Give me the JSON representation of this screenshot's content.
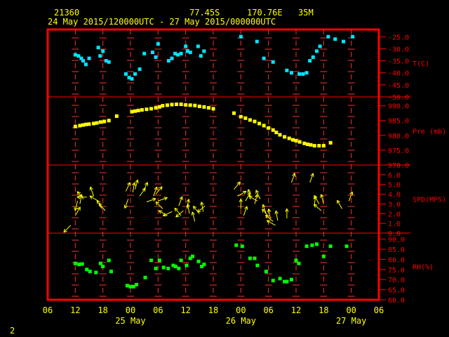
{
  "header": {
    "station": "21360",
    "lat": "77.45S",
    "lon": "170.76E",
    "elev": "35M",
    "period": "24 May 2015/120000UTC - 27 May 2015/000000UTC"
  },
  "footer": {
    "page": "2"
  },
  "colors": {
    "frame": "#ff0000",
    "tick": "#ff3030",
    "header": "#ffff00",
    "temp": "#00e5ff",
    "pres": "#ffff00",
    "wind": "#ffff00",
    "rh": "#00ff00",
    "axis_text": "#ffaa00"
  },
  "chart_data": {
    "type": "scatter",
    "x_axis": {
      "hour_labels": [
        "06",
        "12",
        "18",
        "00",
        "06",
        "12",
        "18",
        "00",
        "06",
        "12",
        "18",
        "00",
        "06"
      ],
      "hour_values": [
        6,
        12,
        18,
        24,
        30,
        36,
        42,
        48,
        54,
        60,
        66,
        72,
        78
      ],
      "day_labels": [
        "25 May",
        "26 May",
        "27 May"
      ],
      "day_positions": [
        24,
        48,
        72
      ],
      "unit": "hours from 24 May 2015 00UTC",
      "range": [
        6,
        78
      ]
    },
    "panels": [
      {
        "name": "temp",
        "label": "T(C)",
        "ylim": [
          -50,
          -22
        ],
        "ticks": [
          -50,
          -45,
          -40,
          -35,
          -30,
          -25
        ],
        "tick_labels": [
          "-50.0",
          "-45.0",
          "-40.0",
          "-35.0",
          "-30.0",
          "-25.0"
        ],
        "x": [
          12,
          12.7,
          13.3,
          13.7,
          14.3,
          15,
          17,
          17.4,
          18,
          18.7,
          19.3,
          23,
          23.7,
          24.3,
          25,
          26,
          27,
          28.8,
          29.5,
          30,
          32.3,
          33,
          33.7,
          34.3,
          35,
          36,
          36.4,
          37,
          38.7,
          39.3,
          40,
          48,
          51.5,
          53,
          55,
          58,
          59,
          60.7,
          61.5,
          62.3,
          63,
          63.7,
          64.5,
          65.2,
          67,
          68.5,
          70.3,
          72.3
        ],
        "y": [
          -32.5,
          -33,
          -34,
          -35,
          -36.5,
          -34,
          -29.5,
          -33,
          -31,
          -35,
          -35.5,
          -40.5,
          -42,
          -42.5,
          -40.5,
          -38.5,
          -32,
          -31.5,
          -33.5,
          -28,
          -35,
          -34,
          -32,
          -32.5,
          -32,
          -29,
          -31,
          -31.5,
          -29,
          -33,
          -31,
          -25,
          -27,
          -34,
          -35.5,
          -39,
          -40,
          -40.5,
          -40.5,
          -40,
          -35,
          -33.5,
          -31,
          -29,
          -25,
          -26,
          -27,
          -25
        ]
      },
      {
        "name": "pres",
        "label": "Pre (mb)",
        "ylim": [
          970,
          993
        ],
        "ticks": [
          970,
          975,
          980,
          985,
          990
        ],
        "tick_labels": [
          "970.0",
          "975.0",
          "980.0",
          "985.0",
          "990.0"
        ],
        "x": [
          12,
          13,
          13.7,
          14.3,
          15,
          16,
          16.7,
          17.5,
          18.3,
          19.3,
          21,
          24.3,
          25,
          25.7,
          26.5,
          27.5,
          28.5,
          29.5,
          30.3,
          31,
          32,
          33,
          34,
          35,
          36,
          37,
          38,
          39,
          40,
          41,
          42,
          46.5,
          48,
          49,
          50,
          51,
          52,
          53,
          54,
          55,
          55.7,
          56.5,
          57.5,
          58.5,
          59.3,
          60,
          60.8,
          61.8,
          62.5,
          63.2,
          64,
          65,
          66,
          67.5
        ],
        "y": [
          983,
          983.3,
          983.5,
          983.7,
          983.8,
          984,
          984.2,
          984.5,
          984.7,
          985,
          986.5,
          988,
          988.2,
          988.4,
          988.6,
          988.8,
          989,
          989.3,
          989.6,
          990,
          990.2,
          990.4,
          990.5,
          990.5,
          990.3,
          990.2,
          990.1,
          989.8,
          989.6,
          989.3,
          989,
          987.5,
          986.3,
          985.8,
          985.2,
          984.7,
          984,
          983.3,
          982.5,
          981.8,
          981,
          980.2,
          979.5,
          979,
          978.5,
          978.2,
          977.8,
          977.3,
          977,
          976.8,
          976.5,
          976.5,
          976.5,
          977.5
        ]
      },
      {
        "name": "wind",
        "label": "SPD(MPS)",
        "ylim": [
          0,
          7
        ],
        "ticks": [
          0,
          1,
          2,
          3,
          4,
          5,
          6
        ],
        "tick_labels": [
          "0.0",
          "1.0",
          "2.0",
          "3.0",
          "4.0",
          "5.0",
          "6.0"
        ],
        "x": [
          11,
          12,
          12.5,
          13,
          13.8,
          14.5,
          16,
          17,
          17.8,
          18.5,
          23,
          23.5,
          24.5,
          25,
          26,
          26.8,
          27.5,
          29,
          29.5,
          30,
          31,
          32,
          33,
          34.5,
          35,
          35.5,
          36.3,
          36.8,
          38,
          39,
          39.8,
          40.2,
          46.5,
          47.3,
          48,
          48.6,
          49,
          50,
          51,
          51.6,
          52.2,
          53.5,
          54,
          54.4,
          55,
          55.5,
          56,
          58,
          59,
          63,
          64,
          65,
          65.5,
          66,
          70,
          71.5
        ],
        "y": [
          0.8,
          1.8,
          3.3,
          3.0,
          3.5,
          3.7,
          3.8,
          3.3,
          2.5,
          2.3,
          4.3,
          3.5,
          4.2,
          4.5,
          3.8,
          4.3,
          3.2,
          3.8,
          4.0,
          3.3,
          2.5,
          1.8,
          2.2,
          2.8,
          1.8,
          2.3,
          2.5,
          2.0,
          1.2,
          2.0,
          2.2,
          2.8,
          4.5,
          3.8,
          2.5,
          1.8,
          3.3,
          3.5,
          3.0,
          3.3,
          3.5,
          2.0,
          1.7,
          1.5,
          1.2,
          0.8,
          1.3,
          1.5,
          5.2,
          5.2,
          2.8,
          3.0,
          2.3,
          3.0,
          2.5,
          3.3
        ],
        "dir": [
          225,
          30,
          195,
          10,
          320,
          270,
          340,
          300,
          330,
          320,
          25,
          200,
          10,
          15,
          35,
          25,
          70,
          20,
          40,
          70,
          315,
          300,
          245,
          20,
          320,
          230,
          10,
          350,
          345,
          320,
          350,
          230,
          40,
          60,
          0,
          20,
          30,
          350,
          15,
          300,
          335,
          340,
          320,
          350,
          310,
          300,
          350,
          0,
          20,
          20,
          5,
          330,
          310,
          345,
          330,
          20
        ]
      },
      {
        "name": "rh",
        "label": "RH(%)",
        "ylim": [
          60,
          93
        ],
        "ticks": [
          60,
          65,
          70,
          75,
          80,
          85,
          90
        ],
        "tick_labels": [
          "60.0",
          "65.0",
          "70.0",
          "75.0",
          "80.0",
          "85.0",
          "90.0"
        ],
        "x": [
          12,
          12.8,
          13.5,
          14.5,
          15.2,
          16.5,
          17.5,
          18,
          19.3,
          19.8,
          23.3,
          24,
          24.7,
          25.3,
          27.2,
          28.5,
          29.5,
          30.3,
          31.2,
          32.2,
          33.3,
          33.8,
          34.5,
          35,
          36.2,
          37,
          37.5,
          38.8,
          39.5,
          40,
          47,
          48.3,
          50,
          51,
          51.6,
          53.5,
          55,
          56.5,
          57.5,
          58,
          59,
          60,
          60.6,
          62.3,
          63.5,
          64.5,
          66,
          67.5,
          71
        ],
        "y": [
          78,
          77.5,
          77.7,
          75,
          74,
          73.5,
          78,
          76.5,
          79.5,
          74,
          67,
          66.5,
          66.5,
          67.5,
          71,
          79.5,
          75.5,
          79.5,
          76,
          75.5,
          77,
          76.5,
          75.5,
          79.5,
          77,
          80.5,
          81.5,
          79,
          76.5,
          77.5,
          87,
          86.5,
          80.5,
          80.5,
          77,
          74,
          69.5,
          70.5,
          69,
          69,
          70,
          79.5,
          78,
          86.5,
          87,
          87.5,
          81.5,
          86.5,
          86.5
        ]
      }
    ]
  }
}
